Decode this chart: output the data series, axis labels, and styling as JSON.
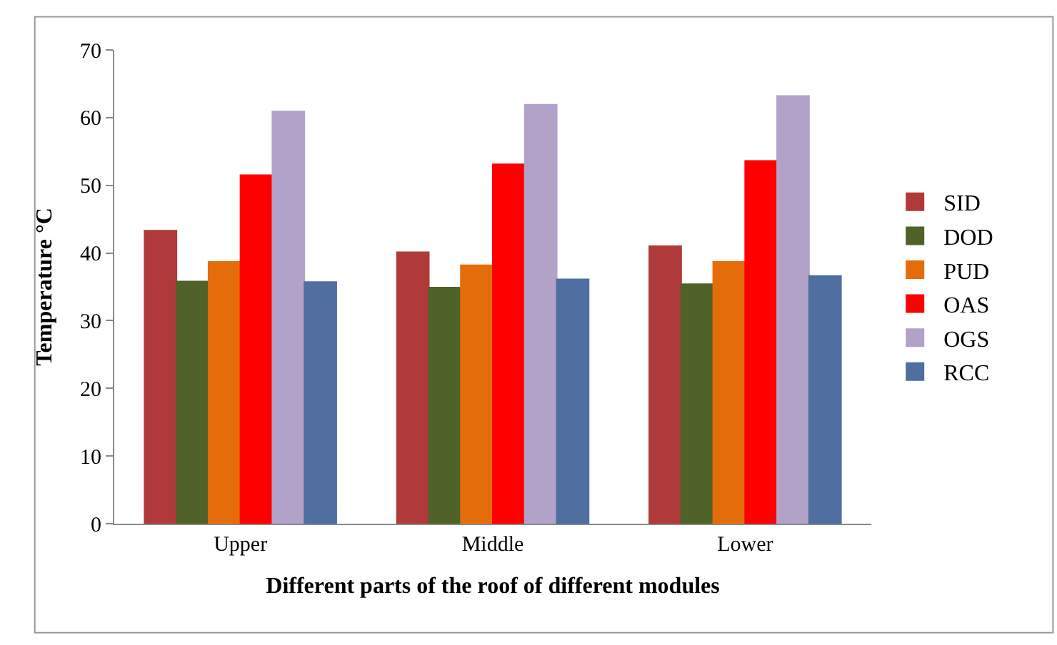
{
  "chart_data": {
    "type": "bar",
    "xlabel": "Different parts of the roof of different modules",
    "ylabel": "Temperature °C",
    "categories": [
      "Upper",
      "Middle",
      "Lower"
    ],
    "series": [
      {
        "name": "SID",
        "color": "#b03a3a",
        "values": [
          43.3,
          40.1,
          41.0
        ]
      },
      {
        "name": "DOD",
        "color": "#4f6228",
        "values": [
          35.8,
          34.9,
          35.4
        ]
      },
      {
        "name": "PUD",
        "color": "#e46c0a",
        "values": [
          38.7,
          38.2,
          38.7
        ]
      },
      {
        "name": "OAS",
        "color": "#ff0000",
        "values": [
          51.5,
          53.1,
          53.6
        ]
      },
      {
        "name": "OGS",
        "color": "#b3a2c7",
        "values": [
          60.9,
          61.9,
          63.2
        ]
      },
      {
        "name": "RCC",
        "color": "#4f6fa0",
        "values": [
          35.7,
          36.1,
          36.6
        ]
      }
    ],
    "ylim": [
      0,
      70
    ],
    "yticks": [
      0,
      10,
      20,
      30,
      40,
      50,
      60,
      70
    ],
    "legend": "right"
  }
}
